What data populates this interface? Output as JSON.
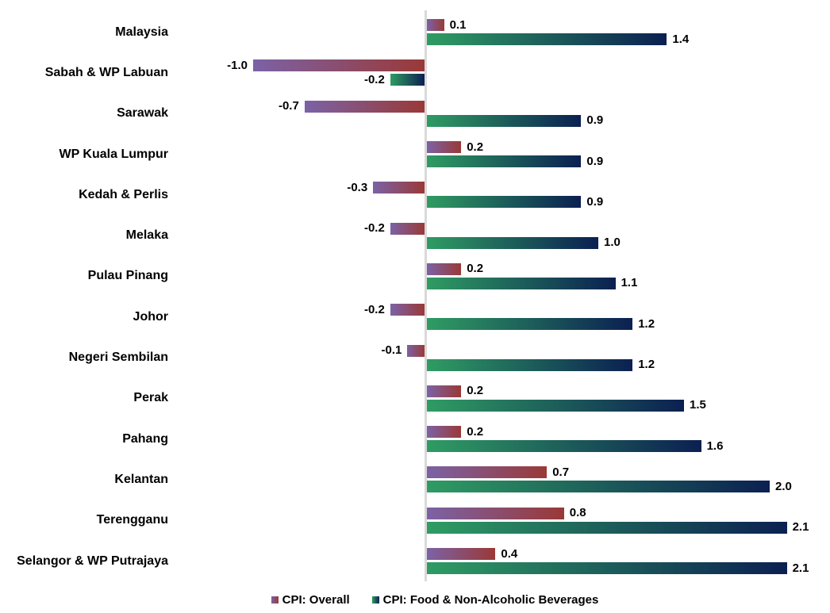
{
  "chart_data": {
    "type": "bar",
    "orientation": "horizontal",
    "title": "",
    "categories": [
      "Malaysia",
      "Sabah & WP Labuan",
      "Sarawak",
      "WP Kuala Lumpur",
      "Kedah & Perlis",
      "Melaka",
      "Pulau Pinang",
      "Johor",
      "Negeri Sembilan",
      "Perak",
      "Pahang",
      "Kelantan",
      "Terengganu",
      "Selangor & WP Putrajaya"
    ],
    "series": [
      {
        "name": "CPI: Overall",
        "values": [
          0.1,
          -1.0,
          -0.7,
          0.2,
          -0.3,
          -0.2,
          0.2,
          -0.2,
          -0.1,
          0.2,
          0.2,
          0.7,
          0.8,
          0.4
        ],
        "labels": [
          "0.1",
          "-1.0",
          "-0.7",
          "0.2",
          "-0.3",
          "-0.2",
          "0.2",
          "-0.2",
          "-0.1",
          "0.2",
          "0.2",
          "0.7",
          "0.8",
          "0.4"
        ],
        "gradient_start": "#7B62A6",
        "gradient_end": "#9A3937"
      },
      {
        "name": "CPI: Food & Non-Alcoholic Beverages",
        "values": [
          1.4,
          -0.2,
          0.9,
          0.9,
          0.9,
          1.0,
          1.1,
          1.2,
          1.2,
          1.5,
          1.6,
          2.0,
          2.1,
          2.1
        ],
        "labels": [
          "1.4",
          "-0.2",
          "0.9",
          "0.9",
          "0.9",
          "1.0",
          "1.1",
          "1.2",
          "1.2",
          "1.5",
          "1.6",
          "2.0",
          "2.1",
          "2.1"
        ],
        "gradient_start": "#2F9C63",
        "gradient_end": "#0B2051"
      }
    ],
    "xlim": [
      -1.35,
      2.35
    ],
    "value_axis_labels_hidden": true,
    "grid": false,
    "legend_position": "bottom",
    "axis_line_color": "#D9D9D9",
    "text_color": "#000000",
    "data_labels_shown": true
  }
}
